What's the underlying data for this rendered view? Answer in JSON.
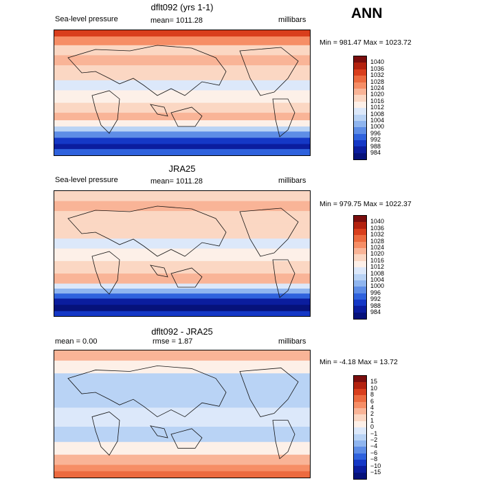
{
  "header": {
    "season": "ANN"
  },
  "chart_data": [
    {
      "type": "heatmap",
      "title": "dflt092 (yrs 1-1)",
      "field": "Sea-level pressure",
      "mean_label": "mean= 1011.28",
      "units": "millibars",
      "minmax_label": "Min = 981.47 Max = 1023.72",
      "min": 981.47,
      "max": 1023.72,
      "levels": [
        "1040",
        "1036",
        "1032",
        "1028",
        "1024",
        "1020",
        "1016",
        "1012",
        "1008",
        "1004",
        "1000",
        "996",
        "992",
        "988",
        "984"
      ],
      "colors": [
        "#7a0d0d",
        "#b3220f",
        "#d93e1c",
        "#ec6a3f",
        "#f68e66",
        "#f9b497",
        "#fbd7c3",
        "#fdf0e8",
        "#dce8fa",
        "#b9d3f5",
        "#8fb5ef",
        "#5e8de6",
        "#2f62dd",
        "#1538c6",
        "#0b1d9e",
        "#06127a"
      ],
      "lat_bands": [
        [
          0.0,
          2
        ],
        [
          0.05,
          4
        ],
        [
          0.12,
          6
        ],
        [
          0.2,
          5
        ],
        [
          0.28,
          6
        ],
        [
          0.4,
          8
        ],
        [
          0.48,
          7
        ],
        [
          0.58,
          6
        ],
        [
          0.66,
          5
        ],
        [
          0.72,
          7
        ],
        [
          0.77,
          9
        ],
        [
          0.81,
          11
        ],
        [
          0.86,
          13
        ],
        [
          0.91,
          14
        ],
        [
          0.95,
          12
        ]
      ]
    },
    {
      "type": "heatmap",
      "title": "JRA25",
      "field": "Sea-level pressure",
      "mean_label": "mean= 1011.28",
      "units": "millibars",
      "minmax_label": "Min = 979.75 Max = 1022.37",
      "min": 979.75,
      "max": 1022.37,
      "levels": [
        "1040",
        "1036",
        "1032",
        "1028",
        "1024",
        "1020",
        "1016",
        "1012",
        "1008",
        "1004",
        "1000",
        "996",
        "992",
        "988",
        "984"
      ],
      "colors": [
        "#7a0d0d",
        "#b3220f",
        "#d93e1c",
        "#ec6a3f",
        "#f68e66",
        "#f9b497",
        "#fbd7c3",
        "#fdf0e8",
        "#dce8fa",
        "#b9d3f5",
        "#8fb5ef",
        "#5e8de6",
        "#2f62dd",
        "#1538c6",
        "#0b1d9e",
        "#06127a"
      ],
      "lat_bands": [
        [
          0.0,
          6
        ],
        [
          0.08,
          5
        ],
        [
          0.16,
          6
        ],
        [
          0.26,
          6
        ],
        [
          0.38,
          8
        ],
        [
          0.46,
          7
        ],
        [
          0.56,
          6
        ],
        [
          0.66,
          5
        ],
        [
          0.74,
          8
        ],
        [
          0.78,
          10
        ],
        [
          0.82,
          12
        ],
        [
          0.86,
          14
        ],
        [
          0.91,
          15
        ],
        [
          0.96,
          13
        ]
      ]
    },
    {
      "type": "heatmap",
      "title": "dflt092 - JRA25",
      "mean_label": "mean =    0.00",
      "rmse_label": "rmse =    1.87",
      "units": "millibars",
      "minmax_label": "Min =  -4.18 Max =  13.72",
      "min": -4.18,
      "max": 13.72,
      "levels": [
        "15",
        "10",
        "8",
        "6",
        "4",
        "2",
        "1",
        "0",
        "−1",
        "−2",
        "−4",
        "−6",
        "−8",
        "−10",
        "−15"
      ],
      "colors": [
        "#7a0d0d",
        "#b3220f",
        "#d93e1c",
        "#ec6a3f",
        "#f68e66",
        "#f9b497",
        "#fbd7c3",
        "#fdf0e8",
        "#dce8fa",
        "#b9d3f5",
        "#8fb5ef",
        "#5e8de6",
        "#2f62dd",
        "#1538c6",
        "#0b1d9e",
        "#06127a"
      ],
      "lat_bands": [
        [
          0.0,
          5
        ],
        [
          0.08,
          7
        ],
        [
          0.18,
          9
        ],
        [
          0.3,
          9
        ],
        [
          0.45,
          8
        ],
        [
          0.6,
          9
        ],
        [
          0.72,
          7
        ],
        [
          0.82,
          5
        ],
        [
          0.9,
          4
        ],
        [
          0.95,
          3
        ]
      ]
    }
  ]
}
